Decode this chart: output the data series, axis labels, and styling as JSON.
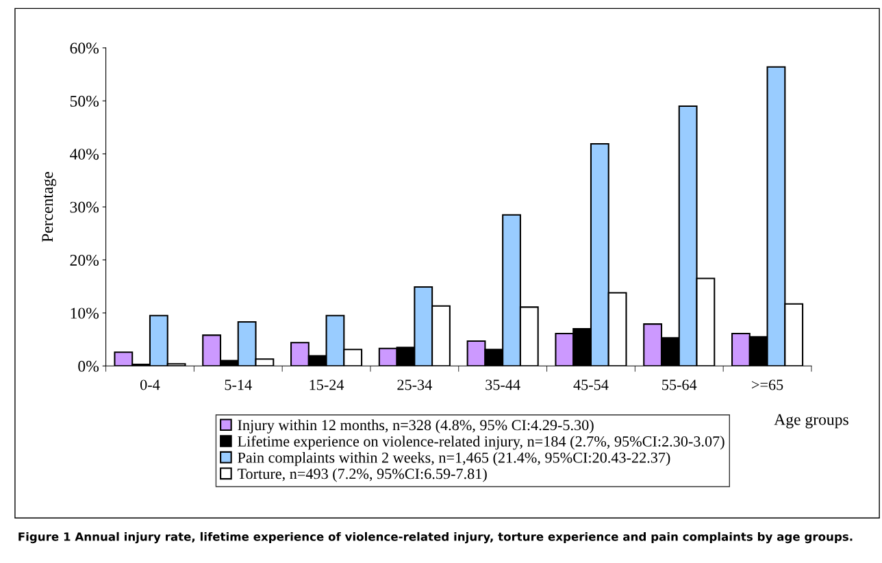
{
  "chart_data": {
    "type": "bar",
    "xlabel": "Age groups",
    "ylabel": "Percentage",
    "categories": [
      "0-4",
      "5-14",
      "15-24",
      "25-34",
      "35-44",
      "45-54",
      "55-64",
      ">=65"
    ],
    "series": [
      {
        "name": "Injury within 12 months, n=328 (4.8%, 95% CI:4.29-5.30)",
        "color": "#cc99ff",
        "values": [
          2.6,
          5.8,
          4.4,
          3.3,
          4.7,
          6.1,
          7.9,
          6.1
        ]
      },
      {
        "name": "Lifetime experience on violence-related injury, n=184 (2.7%, 95%CI:2.30-3.07)",
        "color": "#000000",
        "values": [
          0.3,
          1.0,
          1.9,
          3.5,
          3.1,
          7.0,
          5.3,
          5.5
        ]
      },
      {
        "name": "Pain complaints within 2 weeks, n=1,465 (21.4%, 95%CI:20.43-22.37)",
        "color": "#99ccff",
        "values": [
          9.5,
          8.3,
          9.5,
          14.9,
          28.5,
          41.9,
          49.0,
          56.4
        ]
      },
      {
        "name": "Torture, n=493 (7.2%, 95%CI:6.59-7.81)",
        "color": "#ffffff",
        "values": [
          0.4,
          1.3,
          3.1,
          11.3,
          11.1,
          13.8,
          16.5,
          11.7
        ]
      }
    ],
    "ylim": [
      0,
      60
    ],
    "yticks": [
      {
        "value": 0,
        "label": "0%"
      },
      {
        "value": 10,
        "label": "10%"
      },
      {
        "value": 20,
        "label": "20%"
      },
      {
        "value": 30,
        "label": "30%"
      },
      {
        "value": 40,
        "label": "40%"
      },
      {
        "value": 50,
        "label": "50%"
      },
      {
        "value": 60,
        "label": "60%"
      }
    ],
    "grid": false,
    "legend": "bottom",
    "annotations": [
      "Figure 1 Annual injury rate, lifetime experience of violence-related injury, torture experience and pain complaints by age groups."
    ]
  }
}
